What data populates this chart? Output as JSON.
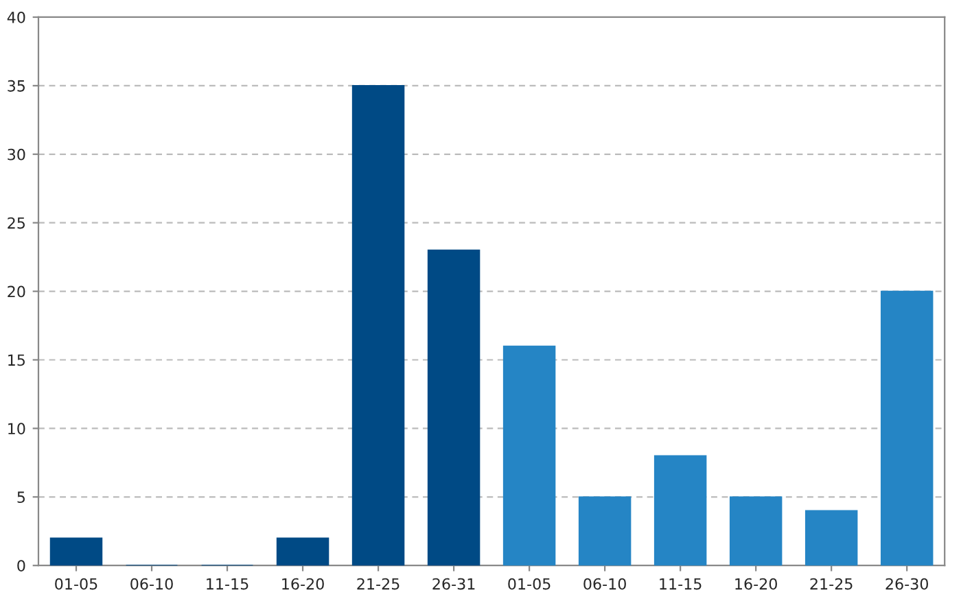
{
  "chart_data": {
    "type": "bar",
    "categories": [
      "01-05",
      "06-10",
      "11-15",
      "16-20",
      "21-25",
      "26-31",
      "01-05",
      "06-10",
      "11-15",
      "16-20",
      "21-25",
      "26-30"
    ],
    "values": [
      2,
      0,
      0,
      2,
      35,
      23,
      16,
      5,
      8,
      5,
      4,
      20
    ],
    "colors": [
      "#004a85",
      "#004a85",
      "#004a85",
      "#004a85",
      "#004a85",
      "#004a85",
      "#2585c5",
      "#2585c5",
      "#2585c5",
      "#2585c5",
      "#2585c5",
      "#2585c5"
    ],
    "ylim": [
      0,
      40
    ],
    "yticks": [
      0,
      5,
      10,
      15,
      20,
      25,
      30,
      35,
      40
    ],
    "grid": "y"
  }
}
